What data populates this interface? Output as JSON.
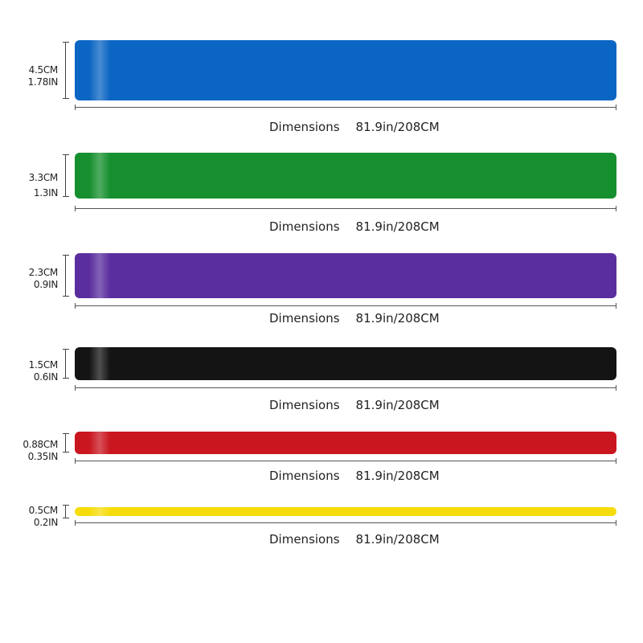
{
  "bands": [
    {
      "color": "#0b65c3",
      "width_cm": "4.5CM",
      "width_in": "1.78IN",
      "dimensions_label": "Dimensions",
      "length": "81.9in/208CM"
    },
    {
      "color": "#168f2e",
      "width_cm": "3.3CM",
      "width_in": "1.3IN",
      "dimensions_label": "Dimensions",
      "length": "81.9in/208CM"
    },
    {
      "color": "#5a2e9e",
      "width_cm": "2.3CM",
      "width_in": "0.9IN",
      "dimensions_label": "Dimensions",
      "length": "81.9in/208CM"
    },
    {
      "color": "#141414",
      "width_cm": "1.5CM",
      "width_in": "0.6IN",
      "dimensions_label": "Dimensions",
      "length": "81.9in/208CM"
    },
    {
      "color": "#c9161f",
      "width_cm": "0.88CM",
      "width_in": "0.35IN",
      "dimensions_label": "Dimensions",
      "length": "81.9in/208CM"
    },
    {
      "color": "#f6dc0a",
      "width_cm": "0.5CM",
      "width_in": "0.2IN",
      "dimensions_label": "Dimensions",
      "length": "81.9in/208CM"
    }
  ]
}
